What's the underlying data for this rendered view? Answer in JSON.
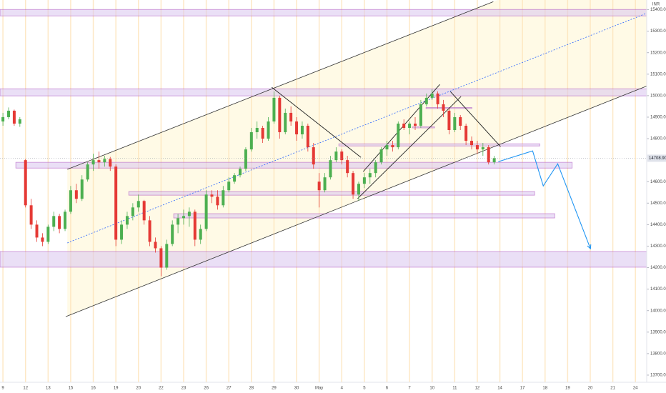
{
  "chart_data": {
    "type": "candlestick",
    "currency": "INR",
    "up_color": "#4caf50",
    "down_color": "#e53935",
    "xlim": [
      -0.13,
      28.5
    ],
    "ylim": [
      13650,
      15445
    ],
    "xticks": [
      {
        "value": 0,
        "label": "9"
      },
      {
        "value": 1,
        "label": "12"
      },
      {
        "value": 2,
        "label": "13"
      },
      {
        "value": 3,
        "label": "15"
      },
      {
        "value": 4,
        "label": "16"
      },
      {
        "value": 5,
        "label": "19"
      },
      {
        "value": 6,
        "label": "20"
      },
      {
        "value": 7,
        "label": "22"
      },
      {
        "value": 8,
        "label": "23"
      },
      {
        "value": 9,
        "label": "26"
      },
      {
        "value": 10,
        "label": "27"
      },
      {
        "value": 11,
        "label": "28"
      },
      {
        "value": 12,
        "label": "29"
      },
      {
        "value": 13,
        "label": "30"
      },
      {
        "value": 14,
        "label": "May"
      },
      {
        "value": 15,
        "label": "4"
      },
      {
        "value": 16,
        "label": "5"
      },
      {
        "value": 17,
        "label": "6"
      },
      {
        "value": 18,
        "label": "7"
      },
      {
        "value": 19,
        "label": "10"
      },
      {
        "value": 20,
        "label": "11"
      },
      {
        "value": 21,
        "label": "12"
      },
      {
        "value": 22,
        "label": "14"
      },
      {
        "value": 23,
        "label": "17"
      },
      {
        "value": 24,
        "label": "18"
      },
      {
        "value": 25,
        "label": "19"
      },
      {
        "value": 26,
        "label": "20"
      },
      {
        "value": 27,
        "label": "21"
      },
      {
        "value": 28,
        "label": "24"
      }
    ],
    "yticks": [
      {
        "value": 15400,
        "label": "15400.00"
      },
      {
        "value": 15300,
        "label": "15300.00"
      },
      {
        "value": 15200,
        "label": "15200.00"
      },
      {
        "value": 15100,
        "label": "15100.00"
      },
      {
        "value": 15000,
        "label": "15000.00"
      },
      {
        "value": 14900,
        "label": "14900.00"
      },
      {
        "value": 14800,
        "label": "14800.00"
      },
      {
        "value": 14600,
        "label": "14600.00"
      },
      {
        "value": 14500,
        "label": "14500.00"
      },
      {
        "value": 14400,
        "label": "14400.00"
      },
      {
        "value": 14300,
        "label": "14300.00"
      },
      {
        "value": 14200,
        "label": "14200.00"
      },
      {
        "value": 14100,
        "label": "14100.00"
      },
      {
        "value": 14000,
        "label": "14000.00"
      },
      {
        "value": 13900,
        "label": "13900.00"
      },
      {
        "value": 13800,
        "label": "13800.00"
      },
      {
        "value": 13700,
        "label": "13700.00"
      }
    ],
    "last_price": {
      "value": 14708.9,
      "label": "14708.90"
    },
    "x": [
      0,
      0.25,
      0.5,
      0.75,
      1,
      1.25,
      1.5,
      1.75,
      2,
      2.25,
      2.5,
      2.75,
      3,
      3.25,
      3.5,
      3.75,
      4,
      4.25,
      4.5,
      4.75,
      5,
      5.25,
      5.5,
      5.75,
      6,
      6.25,
      6.5,
      6.75,
      7,
      7.25,
      7.5,
      7.75,
      8,
      8.25,
      8.5,
      8.75,
      9,
      9.25,
      9.5,
      9.75,
      10,
      10.25,
      10.5,
      10.75,
      11,
      11.25,
      11.5,
      11.75,
      12,
      12.25,
      12.5,
      12.75,
      13,
      13.25,
      13.5,
      13.75,
      14,
      14.25,
      14.5,
      14.75,
      15,
      15.25,
      15.5,
      15.75,
      16,
      16.25,
      16.5,
      16.75,
      17,
      17.25,
      17.5,
      17.75,
      18,
      18.25,
      18.5,
      18.75,
      19,
      19.25,
      19.5,
      19.75,
      20,
      20.25,
      20.5,
      20.75,
      21,
      21.25,
      21.5,
      21.75
    ],
    "ohlc": [
      [
        14880,
        14920,
        14860,
        14900
      ],
      [
        14900,
        14945,
        14890,
        14930
      ],
      [
        14930,
        14935,
        14860,
        14870
      ],
      [
        14870,
        14900,
        14855,
        14890
      ],
      [
        14700,
        14705,
        14480,
        14490
      ],
      [
        14490,
        14520,
        14380,
        14400
      ],
      [
        14400,
        14420,
        14320,
        14340
      ],
      [
        14340,
        14360,
        14300,
        14320
      ],
      [
        14320,
        14400,
        14310,
        14390
      ],
      [
        14390,
        14460,
        14370,
        14440
      ],
      [
        14440,
        14450,
        14360,
        14380
      ],
      [
        14380,
        14470,
        14370,
        14460
      ],
      [
        14460,
        14580,
        14450,
        14560
      ],
      [
        14560,
        14590,
        14500,
        14520
      ],
      [
        14520,
        14630,
        14510,
        14610
      ],
      [
        14610,
        14690,
        14600,
        14680
      ],
      [
        14680,
        14730,
        14650,
        14700
      ],
      [
        14700,
        14740,
        14660,
        14690
      ],
      [
        14690,
        14720,
        14670,
        14705
      ],
      [
        14705,
        14715,
        14650,
        14670
      ],
      [
        14670,
        14680,
        14300,
        14330
      ],
      [
        14330,
        14420,
        14310,
        14400
      ],
      [
        14400,
        14460,
        14380,
        14440
      ],
      [
        14440,
        14500,
        14420,
        14480
      ],
      [
        14480,
        14540,
        14460,
        14510
      ],
      [
        14510,
        14515,
        14400,
        14420
      ],
      [
        14420,
        14440,
        14300,
        14320
      ],
      [
        14320,
        14340,
        14270,
        14290
      ],
      [
        14290,
        14300,
        14160,
        14200
      ],
      [
        14200,
        14330,
        14190,
        14310
      ],
      [
        14310,
        14420,
        14300,
        14400
      ],
      [
        14400,
        14450,
        14360,
        14430
      ],
      [
        14430,
        14470,
        14400,
        14440
      ],
      [
        14440,
        14480,
        14390,
        14460
      ],
      [
        14460,
        14470,
        14300,
        14330
      ],
      [
        14330,
        14400,
        14310,
        14380
      ],
      [
        14380,
        14560,
        14370,
        14540
      ],
      [
        14540,
        14560,
        14500,
        14530
      ],
      [
        14530,
        14560,
        14470,
        14490
      ],
      [
        14490,
        14580,
        14480,
        14560
      ],
      [
        14560,
        14620,
        14550,
        14600
      ],
      [
        14600,
        14640,
        14590,
        14630
      ],
      [
        14630,
        14670,
        14620,
        14660
      ],
      [
        14660,
        14760,
        14650,
        14750
      ],
      [
        14750,
        14850,
        14740,
        14830
      ],
      [
        14830,
        14880,
        14800,
        14850
      ],
      [
        14850,
        14860,
        14780,
        14800
      ],
      [
        14800,
        14900,
        14790,
        14880
      ],
      [
        14880,
        15020,
        14870,
        14990
      ],
      [
        14990,
        15000,
        14800,
        14830
      ],
      [
        14830,
        14940,
        14820,
        14920
      ],
      [
        14920,
        14950,
        14860,
        14880
      ],
      [
        14880,
        14900,
        14790,
        14820
      ],
      [
        14820,
        14880,
        14800,
        14860
      ],
      [
        14860,
        14870,
        14740,
        14760
      ],
      [
        14760,
        14780,
        14660,
        14680
      ],
      [
        14600,
        14640,
        14480,
        14560
      ],
      [
        14560,
        14640,
        14550,
        14620
      ],
      [
        14620,
        14720,
        14610,
        14700
      ],
      [
        14700,
        14760,
        14690,
        14740
      ],
      [
        14740,
        14750,
        14680,
        14700
      ],
      [
        14700,
        14720,
        14620,
        14640
      ],
      [
        14640,
        14650,
        14520,
        14540
      ],
      [
        14540,
        14600,
        14510,
        14590
      ],
      [
        14590,
        14640,
        14570,
        14620
      ],
      [
        14620,
        14660,
        14590,
        14640
      ],
      [
        14640,
        14700,
        14620,
        14690
      ],
      [
        14690,
        14760,
        14680,
        14750
      ],
      [
        14750,
        14790,
        14720,
        14770
      ],
      [
        14770,
        14790,
        14740,
        14760
      ],
      [
        14760,
        14880,
        14750,
        14870
      ],
      [
        14870,
        14890,
        14840,
        14850
      ],
      [
        14850,
        14880,
        14820,
        14870
      ],
      [
        14870,
        14900,
        14840,
        14860
      ],
      [
        14860,
        14980,
        14850,
        14960
      ],
      [
        14960,
        15010,
        14950,
        14990
      ],
      [
        14990,
        15030,
        14980,
        15010
      ],
      [
        15010,
        15020,
        14940,
        14960
      ],
      [
        14960,
        14980,
        14900,
        14930
      ],
      [
        14930,
        14940,
        14820,
        14840
      ],
      [
        14840,
        14920,
        14830,
        14900
      ],
      [
        14900,
        14910,
        14840,
        14860
      ],
      [
        14860,
        14870,
        14770,
        14790
      ],
      [
        14790,
        14810,
        14750,
        14770
      ],
      [
        14770,
        14790,
        14730,
        14750
      ],
      [
        14750,
        14780,
        14720,
        14760
      ],
      [
        14760,
        14770,
        14680,
        14690
      ],
      [
        14690,
        14720,
        14680,
        14708.9
      ]
    ],
    "zones": [
      {
        "from": -0.13,
        "to": 28.5,
        "low": 15371,
        "high": 15401
      },
      {
        "from": -0.13,
        "to": 28.5,
        "low": 14999,
        "high": 15032
      },
      {
        "from": 0.57,
        "to": 25.2,
        "low": 14663,
        "high": 14690
      },
      {
        "from": 5.57,
        "to": 23.54,
        "low": 14537,
        "high": 14554
      },
      {
        "from": 7.56,
        "to": 24.43,
        "low": 14431,
        "high": 14451
      },
      {
        "from": -0.13,
        "to": 28.5,
        "low": 14202,
        "high": 14275
      },
      {
        "from": 18.73,
        "to": 20.76,
        "low": 14940,
        "high": 14945
      },
      {
        "from": 18.13,
        "to": 19.11,
        "low": 14851,
        "high": 14855
      },
      {
        "from": 14.87,
        "to": 23.77,
        "low": 14766,
        "high": 14776
      }
    ],
    "channel": {
      "upper": {
        "x": [
          2.85,
          21.71
        ],
        "y": [
          14657,
          15437
        ]
      },
      "lower": {
        "x": [
          2.78,
          28.51
        ],
        "y": [
          13972,
          15045
        ]
      }
    },
    "midline": {
      "x": [
        2.85,
        28.51
      ],
      "y": [
        14315,
        15384
      ],
      "color": "#2962ff"
    },
    "lines": [
      {
        "x": [
          11.9,
          15.85
        ],
        "y": [
          15039,
          14713
        ]
      },
      {
        "x": [
          15.7,
          20.28
        ],
        "y": [
          14521,
          14996
        ]
      },
      {
        "x": [
          15.95,
          19.34
        ],
        "y": [
          14647,
          15052
        ]
      },
      {
        "x": [
          19.81,
          22.03
        ],
        "y": [
          15019,
          14763
        ]
      }
    ],
    "projection": {
      "x": [
        21.93,
        23.45,
        23.92,
        24.56,
        26.01
      ],
      "y": [
        14693,
        14743,
        14580,
        14683,
        14288
      ],
      "color": "#2196f3"
    }
  }
}
